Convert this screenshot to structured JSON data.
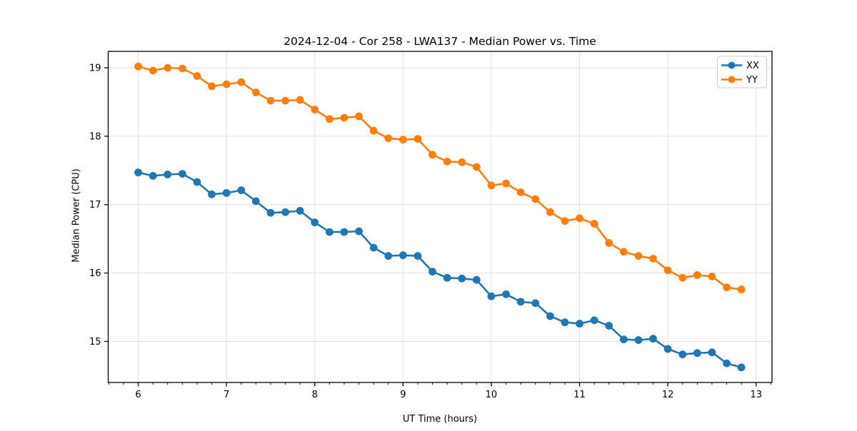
{
  "figure": {
    "background": "#ffffff"
  },
  "chart_data": {
    "type": "line",
    "title": "2024-12-04 - Cor 258 - LWA137 - Median Power vs. Time",
    "xlabel": "UT Time (hours)",
    "ylabel": "Median Power (CPU)",
    "xlim": [
      5.66,
      13.18
    ],
    "ylim": [
      14.4,
      19.24
    ],
    "x_major_ticks": [
      6,
      7,
      8,
      9,
      10,
      11,
      12,
      13
    ],
    "x_minor_step": 0.166667,
    "y_major_ticks": [
      15,
      16,
      17,
      18,
      19
    ],
    "grid": "major-both",
    "grid_color": "#e0e0e0",
    "legend_position": "top-right",
    "marker": "circle",
    "x": [
      6.0,
      6.167,
      6.333,
      6.5,
      6.667,
      6.833,
      7.0,
      7.167,
      7.333,
      7.5,
      7.667,
      7.833,
      8.0,
      8.167,
      8.333,
      8.5,
      8.667,
      8.833,
      9.0,
      9.167,
      9.333,
      9.5,
      9.667,
      9.833,
      10.0,
      10.167,
      10.333,
      10.5,
      10.667,
      10.833,
      11.0,
      11.167,
      11.333,
      11.5,
      11.667,
      11.833,
      12.0,
      12.167,
      12.333,
      12.5,
      12.667,
      12.833
    ],
    "series": [
      {
        "name": "XX",
        "color": "#1f77b4",
        "values": [
          17.47,
          17.42,
          17.44,
          17.45,
          17.33,
          17.15,
          17.17,
          17.21,
          17.05,
          16.88,
          16.89,
          16.91,
          16.74,
          16.6,
          16.6,
          16.61,
          16.37,
          16.25,
          16.26,
          16.25,
          16.02,
          15.93,
          15.92,
          15.9,
          15.66,
          15.69,
          15.58,
          15.56,
          15.37,
          15.28,
          15.26,
          15.31,
          15.23,
          15.03,
          15.02,
          15.04,
          14.89,
          14.81,
          14.83,
          14.84,
          14.68,
          14.62
        ]
      },
      {
        "name": "YY",
        "color": "#ff7f0e",
        "values": [
          19.02,
          18.96,
          19.0,
          18.99,
          18.88,
          18.73,
          18.76,
          18.79,
          18.64,
          18.52,
          18.52,
          18.53,
          18.39,
          18.25,
          18.27,
          18.29,
          18.08,
          17.97,
          17.95,
          17.96,
          17.73,
          17.63,
          17.62,
          17.55,
          17.28,
          17.31,
          17.18,
          17.08,
          16.89,
          16.76,
          16.8,
          16.72,
          16.44,
          16.31,
          16.25,
          16.21,
          16.04,
          15.93,
          15.97,
          15.95,
          15.79,
          15.76
        ]
      }
    ]
  }
}
